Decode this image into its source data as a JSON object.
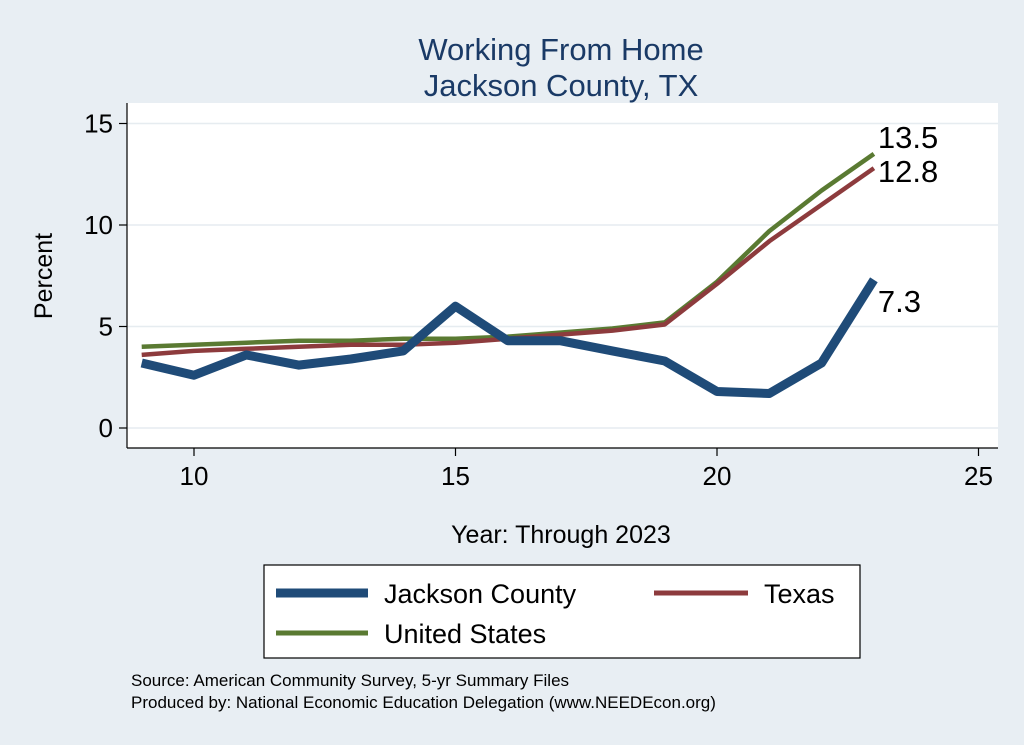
{
  "chart_data": {
    "type": "line",
    "title": [
      "Working From Home",
      "Jackson County, TX"
    ],
    "xlabel": "Year: Through 2023",
    "ylabel": "Percent",
    "xlim": [
      9,
      25
    ],
    "ylim": [
      0,
      15
    ],
    "xticks": [
      10,
      15,
      20,
      25
    ],
    "yticks": [
      0,
      5,
      10,
      15
    ],
    "grid": true,
    "legend_position": "bottom",
    "series": [
      {
        "name": "Jackson County",
        "color": "#1f4b78",
        "x": [
          9,
          10,
          11,
          12,
          13,
          14,
          15,
          16,
          17,
          18,
          19,
          20,
          21,
          22,
          23
        ],
        "y": [
          3.2,
          2.6,
          3.6,
          3.1,
          3.4,
          3.8,
          6.0,
          4.3,
          4.3,
          3.8,
          3.3,
          1.8,
          1.7,
          3.2,
          7.3
        ],
        "end_label": "7.3"
      },
      {
        "name": "Texas",
        "color": "#8d3b3d",
        "x": [
          9,
          10,
          11,
          12,
          13,
          14,
          15,
          16,
          17,
          18,
          19,
          20,
          21,
          22,
          23
        ],
        "y": [
          3.6,
          3.8,
          3.9,
          4.0,
          4.1,
          4.1,
          4.2,
          4.4,
          4.6,
          4.8,
          5.1,
          7.1,
          9.2,
          11.0,
          12.8
        ],
        "end_label": "12.8"
      },
      {
        "name": "United States",
        "color": "#5a7a32",
        "x": [
          9,
          10,
          11,
          12,
          13,
          14,
          15,
          16,
          17,
          18,
          19,
          20,
          21,
          22,
          23
        ],
        "y": [
          4.0,
          4.1,
          4.2,
          4.3,
          4.3,
          4.4,
          4.4,
          4.5,
          4.7,
          4.9,
          5.2,
          7.2,
          9.7,
          11.7,
          13.5
        ],
        "end_label": "13.5"
      }
    ],
    "legend": [
      "Jackson County",
      "Texas",
      "United States"
    ]
  },
  "source": {
    "line1": "Source: American Community Survey, 5-yr Summary Files",
    "line2": "Produced by: National Economic Education Delegation (www.NEEDEcon.org)"
  }
}
